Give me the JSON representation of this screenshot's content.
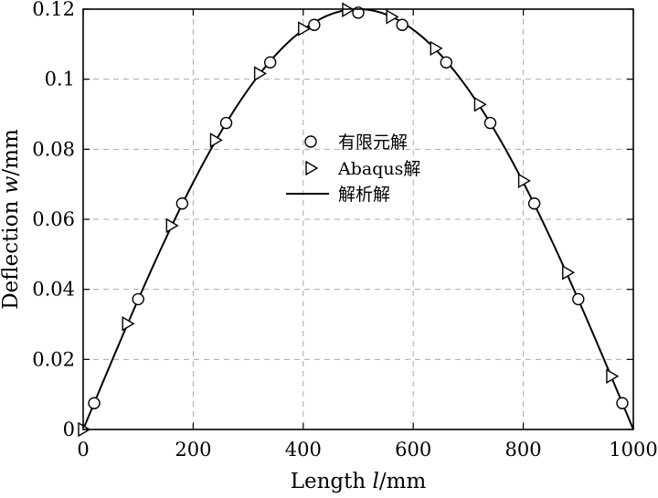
{
  "chart_data": {
    "type": "line",
    "xlabel": {
      "prefix": "Length ",
      "var": "l",
      "unit": "/mm"
    },
    "ylabel": {
      "prefix": "Deflection ",
      "var": "w",
      "unit": "/mm"
    },
    "xlim": [
      0,
      1000
    ],
    "ylim": [
      0,
      0.12
    ],
    "xticks": [
      0,
      200,
      400,
      600,
      800,
      1000
    ],
    "xtick_labels": [
      "0",
      "200",
      "400",
      "600",
      "800",
      "1000"
    ],
    "yticks": [
      0,
      0.02,
      0.04,
      0.06,
      0.08,
      0.1,
      0.12
    ],
    "ytick_labels": [
      "0",
      "0.02",
      "0.04",
      "0.06",
      "0.08",
      "0.1",
      "0.12"
    ],
    "grid": true,
    "legend_position": "center",
    "series": [
      {
        "name": "有限元解",
        "marker": "circle",
        "x": [
          20,
          100,
          180,
          260,
          340,
          420,
          500,
          580,
          660,
          740,
          820,
          900,
          980
        ],
        "y": [
          0.0075,
          0.0372,
          0.0645,
          0.0875,
          0.1048,
          0.1155,
          0.119,
          0.1155,
          0.1048,
          0.0875,
          0.0645,
          0.0372,
          0.0075
        ]
      },
      {
        "name": "Abaqus解",
        "marker": "triangle-right",
        "x": [
          0,
          80,
          160,
          240,
          320,
          400,
          480,
          560,
          640,
          720,
          800,
          880,
          960
        ],
        "y": [
          0.0,
          0.0302,
          0.0582,
          0.0826,
          0.1016,
          0.1144,
          0.1198,
          0.1178,
          0.1088,
          0.0928,
          0.071,
          0.0448,
          0.0152
        ]
      },
      {
        "name": "解析解",
        "marker": "none",
        "x": [
          0,
          50,
          100,
          150,
          200,
          250,
          300,
          350,
          400,
          450,
          500,
          550,
          600,
          650,
          700,
          750,
          800,
          850,
          900,
          950,
          1000
        ],
        "y": [
          0.0,
          0.01866,
          0.03687,
          0.05416,
          0.07013,
          0.08439,
          0.09663,
          0.10654,
          0.1139,
          0.1185,
          0.12,
          0.1185,
          0.1139,
          0.10654,
          0.09663,
          0.08439,
          0.07013,
          0.05416,
          0.03687,
          0.01866,
          0.0
        ]
      }
    ]
  }
}
